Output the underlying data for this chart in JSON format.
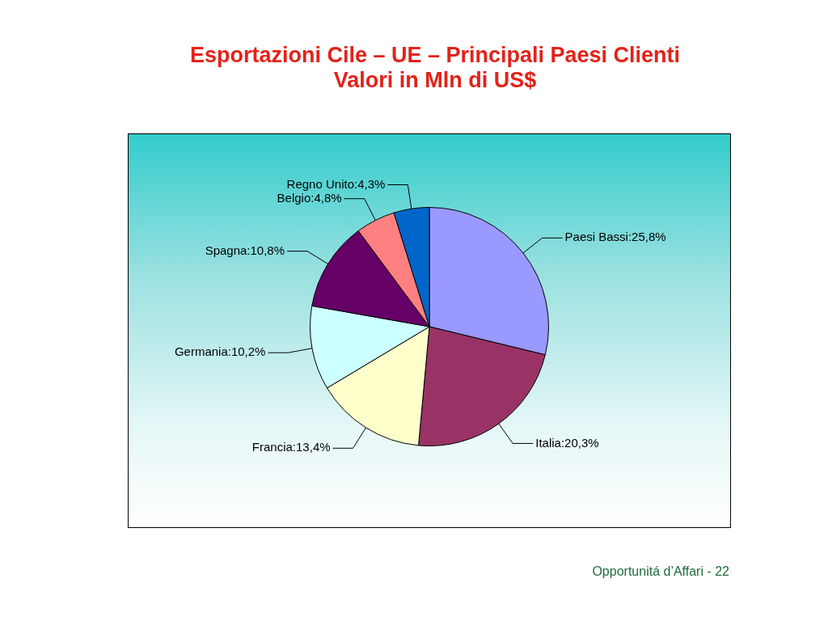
{
  "chart_data": {
    "type": "pie",
    "title": "Esportazioni Cile – UE – Principali Paesi Clienti",
    "subtitle": "Valori in Mln di US$",
    "categories": [
      "Paesi Bassi",
      "Italia",
      "Francia",
      "Germania",
      "Spagna",
      "Belgio",
      "Regno Unito"
    ],
    "values": [
      25.8,
      20.3,
      13.4,
      10.2,
      10.8,
      4.8,
      4.3
    ],
    "value_labels": [
      "25,8%",
      "20,3%",
      "13,4%",
      "10,2%",
      "10,8%",
      "4,8%",
      "4,3%"
    ],
    "colors": [
      "#9999ff",
      "#993366",
      "#ffffcc",
      "#ccffff",
      "#660066",
      "#ff8080",
      "#0066cc"
    ],
    "legend": false,
    "annotations": [
      "Opportunitá d’Affari - 22"
    ]
  }
}
